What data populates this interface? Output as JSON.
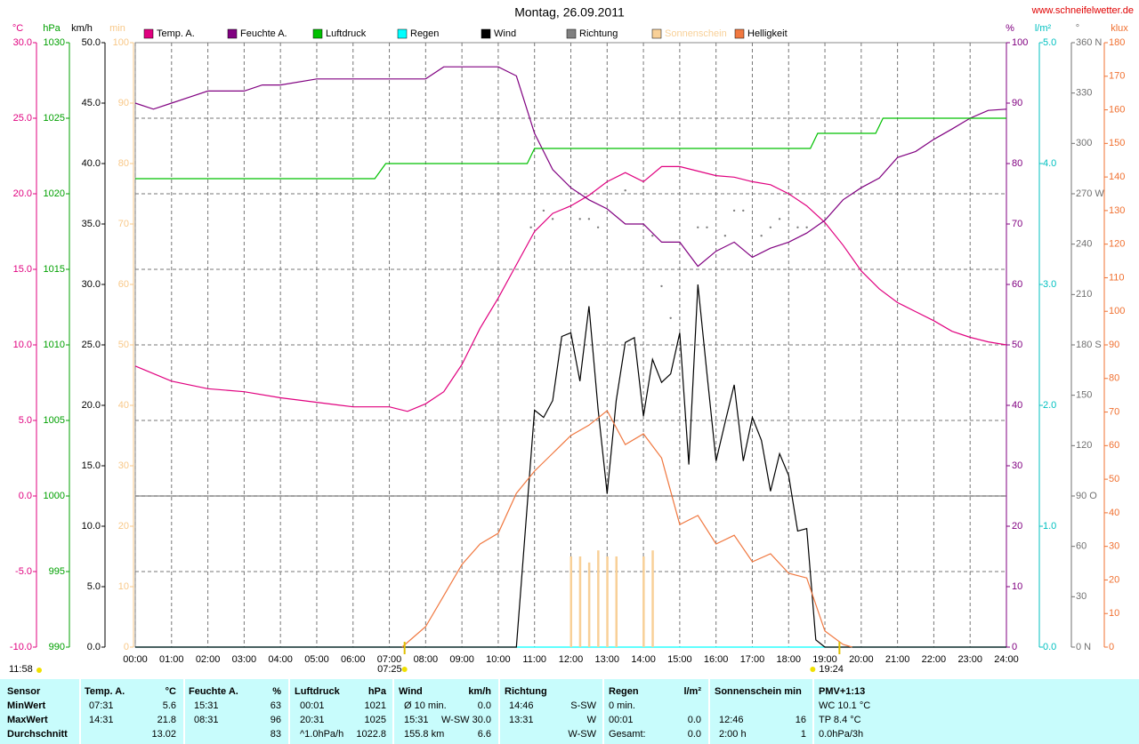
{
  "chart_data": {
    "type": "line",
    "title": "Montag, 26.09.2011",
    "source": "www.schneifelwetter.de",
    "xlim": [
      0,
      24
    ],
    "xticks": [
      {
        "value": 0,
        "label": "00:00"
      },
      {
        "value": 1,
        "label": "01:00"
      },
      {
        "value": 2,
        "label": "02:00"
      },
      {
        "value": 3,
        "label": "03:00"
      },
      {
        "value": 4,
        "label": "04:00"
      },
      {
        "value": 5,
        "label": "05:00"
      },
      {
        "value": 6,
        "label": "06:00"
      },
      {
        "value": 7,
        "label": "07:00"
      },
      {
        "value": 8,
        "label": "08:00"
      },
      {
        "value": 9,
        "label": "09:00"
      },
      {
        "value": 10,
        "label": "10:00"
      },
      {
        "value": 11,
        "label": "11:00"
      },
      {
        "value": 12,
        "label": "12:00"
      },
      {
        "value": 13,
        "label": "13:00"
      },
      {
        "value": 14,
        "label": "14:00"
      },
      {
        "value": 15,
        "label": "15:00"
      },
      {
        "value": 16,
        "label": "16:00"
      },
      {
        "value": 17,
        "label": "17:00"
      },
      {
        "value": 18,
        "label": "18:00"
      },
      {
        "value": 19,
        "label": "19:00"
      },
      {
        "value": 20,
        "label": "20:00"
      },
      {
        "value": 21,
        "label": "21:00"
      },
      {
        "value": 22,
        "label": "22:00"
      },
      {
        "value": 23,
        "label": "23:00"
      },
      {
        "value": 24,
        "label": "24:00"
      }
    ],
    "grid": true,
    "grid_axis": "°C",
    "axes": [
      {
        "label": "°C",
        "color": "#e0007f",
        "ylim": [
          -10,
          30
        ],
        "yticks": [
          {
            "value": -10,
            "label": "-10.0"
          },
          {
            "value": -5,
            "label": "-5.0"
          },
          {
            "value": 0,
            "label": "0.0"
          },
          {
            "value": 5,
            "label": "5.0"
          },
          {
            "value": 10,
            "label": "10.0"
          },
          {
            "value": 15,
            "label": "15.0"
          },
          {
            "value": 20,
            "label": "20.0"
          },
          {
            "value": 25,
            "label": "25.0"
          },
          {
            "value": 30,
            "label": "30.0"
          }
        ]
      },
      {
        "label": "hPa",
        "color": "#00a000",
        "ylim": [
          990,
          1030
        ],
        "yticks": [
          990,
          995,
          1000,
          1005,
          1010,
          1015,
          1020,
          1025,
          1030
        ]
      },
      {
        "label": "km/h",
        "color": "#000000",
        "ylim": [
          0,
          50
        ],
        "yticks": [
          {
            "value": 0,
            "label": "0.0"
          },
          {
            "value": 5,
            "label": "5.0"
          },
          {
            "value": 10,
            "label": "10.0"
          },
          {
            "value": 15,
            "label": "15.0"
          },
          {
            "value": 20,
            "label": "20.0"
          },
          {
            "value": 25,
            "label": "25.0"
          },
          {
            "value": 30,
            "label": "30.0"
          },
          {
            "value": 35,
            "label": "35.0"
          },
          {
            "value": 40,
            "label": "40.0"
          },
          {
            "value": 45,
            "label": "45.0"
          },
          {
            "value": 50,
            "label": "50.0"
          }
        ]
      },
      {
        "label": "min",
        "color": "#f8c888",
        "ylim": [
          0,
          100
        ],
        "yticks": [
          0,
          10,
          20,
          30,
          40,
          50,
          60,
          70,
          80,
          90,
          100
        ]
      },
      {
        "label": "%",
        "color": "#800080",
        "ylim": [
          0,
          100
        ],
        "yticks": [
          0,
          10,
          20,
          30,
          40,
          50,
          60,
          70,
          80,
          90,
          100
        ]
      },
      {
        "label": "l/m²",
        "color": "#00c0c0",
        "ylim": [
          0,
          5
        ],
        "yticks": [
          {
            "value": 0,
            "label": "0.0"
          },
          {
            "value": 1,
            "label": "1.0"
          },
          {
            "value": 2,
            "label": "2.0"
          },
          {
            "value": 3,
            "label": "3.0"
          },
          {
            "value": 4,
            "label": "4.0"
          },
          {
            "value": 5,
            "label": "5.0"
          }
        ]
      },
      {
        "label": "°",
        "color": "#707070",
        "ylim": [
          0,
          360
        ],
        "yticks": [
          {
            "value": 0,
            "label": "0 N"
          },
          30,
          60,
          {
            "value": 90,
            "label": "90 O"
          },
          120,
          150,
          {
            "value": 180,
            "label": "180 S"
          },
          210,
          240,
          {
            "value": 270,
            "label": "270 W"
          },
          300,
          330,
          {
            "value": 360,
            "label": "360 N"
          }
        ]
      },
      {
        "label": "klux",
        "color": "#f07030",
        "ylim": [
          0,
          180
        ],
        "yticks": [
          0,
          10,
          20,
          30,
          40,
          50,
          60,
          70,
          80,
          90,
          100,
          110,
          120,
          130,
          140,
          150,
          160,
          170,
          180
        ]
      }
    ],
    "series": [
      {
        "name": "Temp. A.",
        "color": "#e0007f",
        "axis": "°C",
        "mark": "line",
        "x": [
          0,
          1,
          2,
          3,
          4,
          5,
          6,
          7,
          7.5,
          8,
          8.5,
          9,
          9.5,
          10,
          10.5,
          11,
          11.5,
          12,
          12.5,
          13,
          13.5,
          14,
          14.5,
          15,
          15.5,
          16,
          16.5,
          17,
          17.5,
          18,
          18.5,
          19,
          19.5,
          20,
          20.5,
          21,
          21.5,
          22,
          22.5,
          23,
          23.5,
          24
        ],
        "values": [
          8.6,
          7.6,
          7.1,
          6.9,
          6.5,
          6.2,
          5.9,
          5.9,
          5.6,
          6.1,
          6.9,
          8.7,
          11.1,
          13.1,
          15.3,
          17.5,
          18.7,
          19.2,
          19.9,
          20.8,
          21.4,
          20.8,
          21.8,
          21.8,
          21.5,
          21.2,
          21.1,
          20.8,
          20.6,
          20.0,
          19.2,
          18.1,
          16.6,
          14.9,
          13.7,
          12.8,
          12.2,
          11.6,
          10.9,
          10.5,
          10.2,
          10.0
        ]
      },
      {
        "name": "Feuchte A.",
        "color": "#800080",
        "axis": "%",
        "mark": "line",
        "x": [
          0,
          0.5,
          1,
          1.5,
          2,
          3,
          3.5,
          4,
          5,
          8,
          8.5,
          10,
          10.5,
          11,
          11.5,
          12,
          12.5,
          13,
          13.5,
          14,
          14.5,
          15,
          15.5,
          16,
          16.5,
          17,
          17.5,
          18,
          18.5,
          19,
          19.5,
          20,
          20.5,
          21,
          21.5,
          22,
          22.5,
          23,
          23.5,
          24
        ],
        "values": [
          90,
          89,
          90,
          91,
          92,
          92,
          93,
          93,
          94,
          94,
          96,
          96,
          94.5,
          85,
          79,
          76,
          74,
          72.5,
          70,
          70,
          67,
          67,
          63,
          65.5,
          67,
          64.5,
          66,
          67,
          68.5,
          70.6,
          74,
          76,
          77.6,
          81,
          82,
          84,
          85.7,
          87.5,
          88.8,
          89
        ]
      },
      {
        "name": "Luftdruck",
        "color": "#00c000",
        "axis": "hPa",
        "mark": "line",
        "x": [
          0,
          6.6,
          6.9,
          10.8,
          11,
          18.6,
          18.8,
          20.4,
          20.6,
          24
        ],
        "values": [
          1021,
          1021,
          1022,
          1022,
          1023,
          1023,
          1024,
          1024,
          1025,
          1025
        ]
      },
      {
        "name": "Regen",
        "color": "#00ffff",
        "axis": "l/m²",
        "mark": "line",
        "x": [
          0,
          24
        ],
        "values": [
          0,
          0
        ]
      },
      {
        "name": "Wind",
        "color": "#000000",
        "axis": "km/h",
        "mark": "line",
        "x": [
          0,
          10.5,
          11,
          11.25,
          11.5,
          11.75,
          12,
          12.25,
          12.5,
          12.75,
          13,
          13.25,
          13.5,
          13.75,
          14,
          14.25,
          14.5,
          14.75,
          15,
          15.25,
          15.5,
          15.75,
          16,
          16.25,
          16.5,
          16.75,
          17,
          17.25,
          17.5,
          17.75,
          18,
          18.25,
          18.5,
          18.75,
          19,
          24
        ],
        "values": [
          0,
          0,
          19.6,
          19,
          20.4,
          25.7,
          26,
          22,
          28.2,
          19.7,
          12.7,
          20.4,
          25.2,
          25.6,
          19.1,
          23.8,
          21.9,
          22.6,
          26,
          15.1,
          30,
          22.6,
          15.4,
          18.6,
          21.7,
          15.4,
          19,
          17.1,
          12.9,
          16,
          14.2,
          9.6,
          9.8,
          0.6,
          0,
          0
        ]
      },
      {
        "name": "Richtung",
        "color": "#808080",
        "axis": "°",
        "mark": "dot",
        "x": [
          10.9,
          11.25,
          11.5,
          12.25,
          12.5,
          12.75,
          13.5,
          14.25,
          14.5,
          14.75,
          15.5,
          15.75,
          16.25,
          16.5,
          16.75,
          17.25,
          17.5,
          17.75,
          18.25,
          18.5
        ],
        "values": [
          250,
          260,
          255,
          255,
          255,
          250,
          272,
          245,
          215,
          196,
          250,
          250,
          245,
          260,
          260,
          245,
          250,
          255,
          250,
          250
        ]
      },
      {
        "name": "Sonnenschein",
        "color": "#f8d098",
        "axis": "min",
        "mark": "bar",
        "x": [
          12,
          12.25,
          12.5,
          12.75,
          13,
          13.25,
          14,
          14.25
        ],
        "values": [
          15,
          15,
          14,
          16,
          15,
          15,
          15,
          16
        ]
      },
      {
        "name": "Helligkeit",
        "color": "#f07840",
        "axis": "klux",
        "mark": "line",
        "x": [
          7.35,
          8,
          8.5,
          9,
          9.5,
          10,
          10.5,
          11,
          11.5,
          12,
          12.5,
          13,
          13.5,
          14,
          14.5,
          15,
          15.5,
          16,
          16.5,
          17,
          17.5,
          18,
          18.5,
          19,
          19.5,
          19.75
        ],
        "values": [
          0,
          6.1,
          15.3,
          24.6,
          30.7,
          33.9,
          45.8,
          52.4,
          57.7,
          63,
          66.1,
          70.4,
          60.3,
          63.5,
          56.3,
          36.5,
          39.2,
          30.7,
          33.3,
          25.4,
          27.8,
          22,
          20.6,
          4.8,
          0.8,
          0
        ]
      }
    ],
    "annotations": [
      {
        "text": "07:25",
        "x": 7.42
      },
      {
        "text": "19:24",
        "x": 19.4
      }
    ],
    "solar_noon": "11:58"
  },
  "stats": {
    "header": {
      "label": "Sensor",
      "temp_time": "Temp. A.",
      "temp": "°C",
      "hum_time": "Feuchte A.",
      "hum": "%",
      "press_time": "Luftdruck",
      "press": "hPa",
      "wind_time": "Wind",
      "wind": "km/h",
      "dir_time": "Richtung",
      "rain_time": "Regen",
      "rain": "l/m²",
      "sun_time": "Sonnenschein min",
      "pmv": "PMV+1:13"
    },
    "rows": [
      {
        "label": "MinWert",
        "temp_time": "07:31",
        "temp": "5.6",
        "hum_time": "15:31",
        "hum": "63",
        "press_time": "00:01",
        "press": "1021",
        "wind_time": "Ø 10 min.",
        "wind": "0.0",
        "dir_time": "14:46",
        "dir": "S-SW",
        "rain_time": "0 min.",
        "pmv": "WC 10.1 °C"
      },
      {
        "label": "MaxWert",
        "temp_time": "14:31",
        "temp": "21.8",
        "hum_time": "08:31",
        "hum": "96",
        "press_time": "20:31",
        "press": "1025",
        "wind_time": "15:31",
        "wind": "W-SW 30.0",
        "dir_time": "13:31",
        "dir": "W",
        "rain_time": "00:01",
        "rain": "0.0",
        "sun_time": "12:46",
        "sun": "16",
        "pmv": "TP 8.4 °C"
      },
      {
        "label": "Durchschnitt",
        "temp": "13.02",
        "hum": "83",
        "press_time": "^1.0hPa/h",
        "press": "1022.8",
        "wind_time": "155.8 km",
        "wind": "6.6",
        "dir": "W-SW",
        "rain_time": "Gesamt:",
        "rain": "0.0",
        "sun_time": "2:00 h",
        "sun": "1",
        "pmv": "0.0hPa/3h"
      }
    ]
  }
}
